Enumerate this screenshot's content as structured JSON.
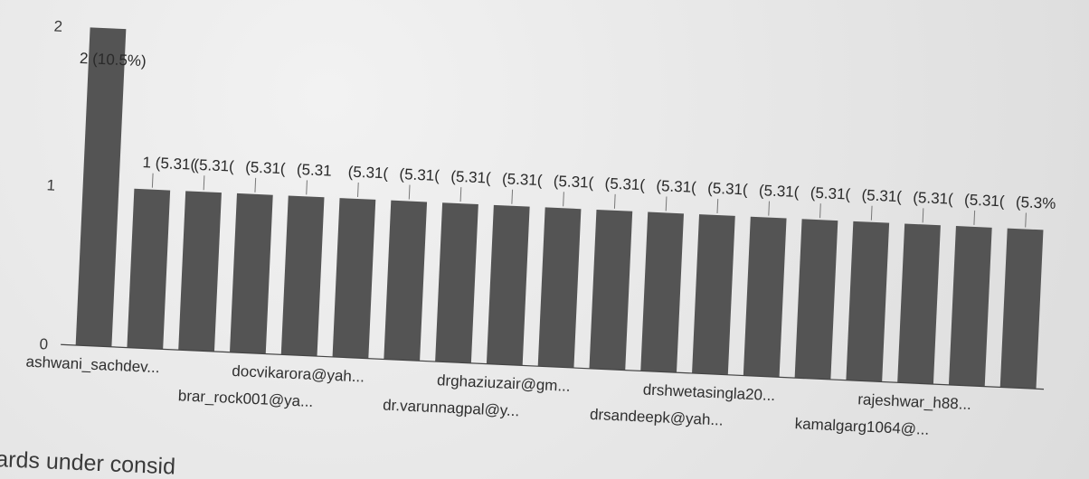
{
  "chart_data": {
    "type": "bar",
    "categories": [
      "ashwani_sachdev...",
      "brar_rock001@ya...",
      "docvikarora@yah...",
      "dr.varunnagpal@y...",
      "drghaziuzair@gm...",
      "drsandeepk@yah...",
      "drshwetasingla20...",
      "kamalgarg1064@...",
      "rajeshwar_h88...",
      "",
      "",
      "",
      "",
      "",
      "",
      "",
      "",
      "",
      ""
    ],
    "values": [
      2,
      1,
      1,
      1,
      1,
      1,
      1,
      1,
      1,
      1,
      1,
      1,
      1,
      1,
      1,
      1,
      1,
      1,
      1
    ],
    "bar_labels": [
      "2 (10.5%)",
      "1 (5.31(",
      "(5.31(",
      "(5.31(",
      "(5.31",
      "(5.31(",
      "(5.31(",
      "(5.31(",
      "(5.31(",
      "(5.31(",
      "(5.31(",
      "(5.31(",
      "(5.31(",
      "(5.31(",
      "(5.31(",
      "(5.31(",
      "(5.31(",
      "(5.31(",
      "(5.3%"
    ],
    "y_ticks": [
      "0",
      "1",
      "2"
    ],
    "ylim": [
      0,
      2
    ],
    "title": "",
    "xlabel": "",
    "ylabel": "",
    "colors": {
      "bar": "#545454",
      "text": "#2a2a2a"
    }
  },
  "caption": "ards under consid"
}
